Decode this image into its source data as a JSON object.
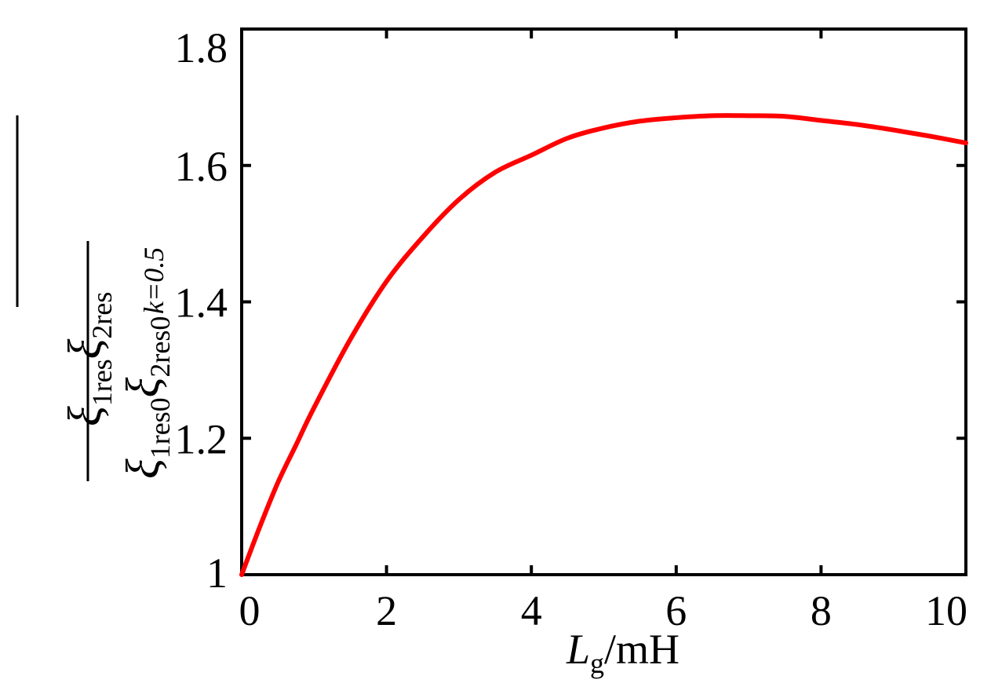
{
  "chart_data": {
    "type": "line",
    "xlabel": {
      "symbol": "L",
      "subscript": "g",
      "unit": "/mH"
    },
    "ylabel": {
      "numerator": {
        "glyph1": "ξ",
        "sub1": "1res",
        "glyph2": "ξ",
        "sub2": "2res"
      },
      "denominator": {
        "glyph1": "ξ",
        "sub1": "1res0",
        "glyph2": "ξ",
        "sub2": "2res0"
      },
      "condition": "k=0.5"
    },
    "xlim": [
      0,
      10
    ],
    "ylim": [
      1,
      1.8
    ],
    "x_ticks": [
      0,
      2,
      4,
      6,
      8,
      10
    ],
    "x_tick_labels": [
      "0",
      "2",
      "4",
      "6",
      "8",
      "10"
    ],
    "y_ticks": [
      1,
      1.2,
      1.4,
      1.6,
      1.8
    ],
    "y_tick_labels": [
      "1",
      "1.2",
      "1.4",
      "1.6",
      "1.8"
    ],
    "grid": false,
    "series": [
      {
        "color": "#ff0000",
        "x": [
          0,
          0.25,
          0.5,
          0.75,
          1,
          1.5,
          2,
          2.5,
          3,
          3.5,
          4,
          4.5,
          5,
          5.5,
          6,
          6.5,
          7,
          7.5,
          8,
          8.5,
          9,
          9.5,
          10
        ],
        "y": [
          1.0,
          1.07,
          1.135,
          1.19,
          1.245,
          1.345,
          1.43,
          1.495,
          1.55,
          1.59,
          1.615,
          1.64,
          1.655,
          1.665,
          1.67,
          1.673,
          1.673,
          1.672,
          1.666,
          1.66,
          1.652,
          1.643,
          1.633
        ]
      }
    ]
  }
}
